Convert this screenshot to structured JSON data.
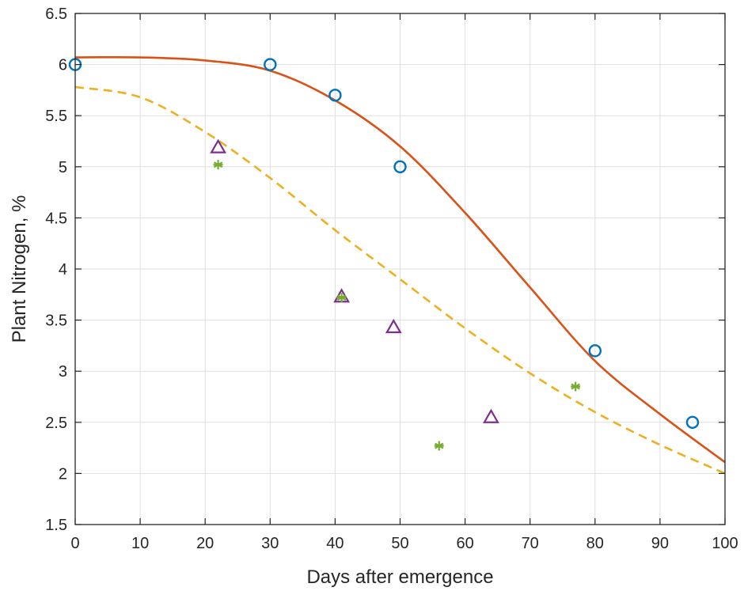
{
  "chart_data": {
    "type": "scatter",
    "title": "",
    "xlabel": "Days after emergence",
    "ylabel": "Plant Nitrogen, %",
    "xlim": [
      0,
      100
    ],
    "ylim": [
      1.5,
      6.5
    ],
    "xticks": [
      0,
      10,
      20,
      30,
      40,
      50,
      60,
      70,
      80,
      90,
      100
    ],
    "yticks": [
      1.5,
      2,
      2.5,
      3,
      3.5,
      4,
      4.5,
      5,
      5.5,
      6,
      6.5
    ],
    "xtick_labels": [
      "0",
      "10",
      "20",
      "30",
      "40",
      "50",
      "60",
      "70",
      "80",
      "90",
      "100"
    ],
    "ytick_labels": [
      "1.5",
      "2",
      "2.5",
      "3",
      "3.5",
      "4",
      "4.5",
      "5",
      "5.5",
      "6",
      "6.5"
    ],
    "grid": true,
    "legend": "none",
    "series": [
      {
        "kind": "circle-markers",
        "color": "#0072BD",
        "x": [
          0,
          30,
          40,
          50,
          80,
          95
        ],
        "y": [
          6.0,
          6.0,
          5.7,
          5.0,
          3.2,
          2.5
        ]
      },
      {
        "kind": "triangle-markers",
        "color": "#7E2F8E",
        "x": [
          22,
          41,
          49,
          64
        ],
        "y": [
          5.19,
          3.73,
          3.43,
          2.55
        ]
      },
      {
        "kind": "asterisk-markers",
        "color": "#77AC30",
        "x": [
          22,
          41,
          56,
          77
        ],
        "y": [
          5.02,
          3.72,
          2.27,
          2.85
        ]
      },
      {
        "kind": "solid-curve",
        "color": "#D95319",
        "x": [
          0,
          10,
          20,
          30,
          40,
          50,
          60,
          70,
          80,
          90,
          100
        ],
        "y": [
          6.07,
          6.07,
          6.04,
          5.94,
          5.65,
          5.2,
          4.55,
          3.82,
          3.1,
          2.58,
          2.11
        ]
      },
      {
        "kind": "dashed-curve",
        "color": "#EDB120",
        "x": [
          0,
          10,
          20,
          30,
          40,
          50,
          60,
          70,
          80,
          90,
          100
        ],
        "y": [
          5.78,
          5.68,
          5.34,
          4.89,
          4.38,
          3.9,
          3.42,
          2.98,
          2.6,
          2.28,
          2.0
        ]
      }
    ]
  }
}
